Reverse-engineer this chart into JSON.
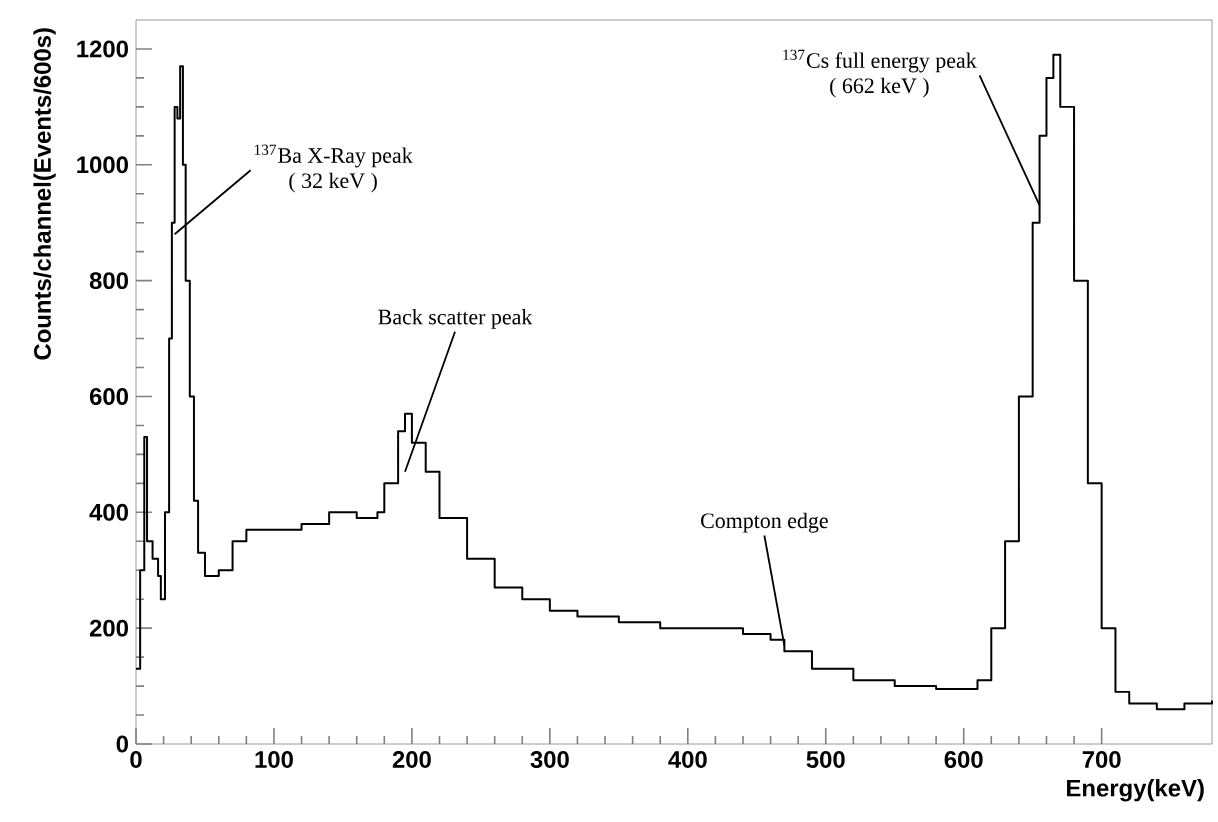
{
  "chart_data": {
    "type": "step",
    "xlabel": "Energy(keV)",
    "ylabel": "Counts/channel(Events/600s)",
    "x": [
      0,
      3,
      6,
      8,
      12,
      16,
      18,
      21,
      24,
      26,
      28,
      30,
      32,
      34,
      36,
      39,
      42,
      45,
      50,
      60,
      70,
      80,
      100,
      120,
      140,
      160,
      175,
      180,
      190,
      195,
      200,
      210,
      220,
      240,
      260,
      280,
      300,
      320,
      350,
      380,
      410,
      440,
      460,
      470,
      490,
      520,
      550,
      580,
      600,
      610,
      620,
      630,
      640,
      650,
      655,
      660,
      665,
      670,
      680,
      690,
      700,
      710,
      720,
      740,
      760,
      780
    ],
    "values": [
      130,
      300,
      530,
      350,
      320,
      290,
      250,
      400,
      700,
      900,
      1100,
      1080,
      1170,
      1000,
      800,
      600,
      420,
      330,
      290,
      300,
      350,
      370,
      370,
      380,
      400,
      390,
      400,
      450,
      540,
      570,
      520,
      470,
      390,
      320,
      270,
      250,
      230,
      220,
      210,
      200,
      200,
      190,
      180,
      160,
      130,
      110,
      100,
      95,
      95,
      110,
      200,
      350,
      600,
      900,
      1050,
      1150,
      1190,
      1100,
      800,
      450,
      200,
      90,
      70,
      60,
      70,
      75
    ],
    "color": "#000000",
    "marker": "none",
    "line_style": "solid",
    "xlim": [
      0,
      780
    ],
    "ylim": [
      0,
      1250
    ],
    "xticks": [
      0,
      100,
      200,
      300,
      400,
      500,
      600,
      700
    ],
    "yticks": [
      0,
      200,
      400,
      600,
      800,
      1000,
      1200
    ],
    "grid": false,
    "annotations": [
      {
        "text": "$^{137}$Ba X-Ray peak",
        "x": 28,
        "y": 880
      },
      "( 32 keV )",
      {
        "text": "Back scatter peak",
        "x": 195,
        "y": 470
      },
      {
        "text": "Compton edge",
        "x": 470,
        "y": 170
      },
      {
        "text": "$^{137}$Cs full energy peak",
        "x": 655,
        "y": 930
      },
      "( 662 keV )"
    ]
  }
}
